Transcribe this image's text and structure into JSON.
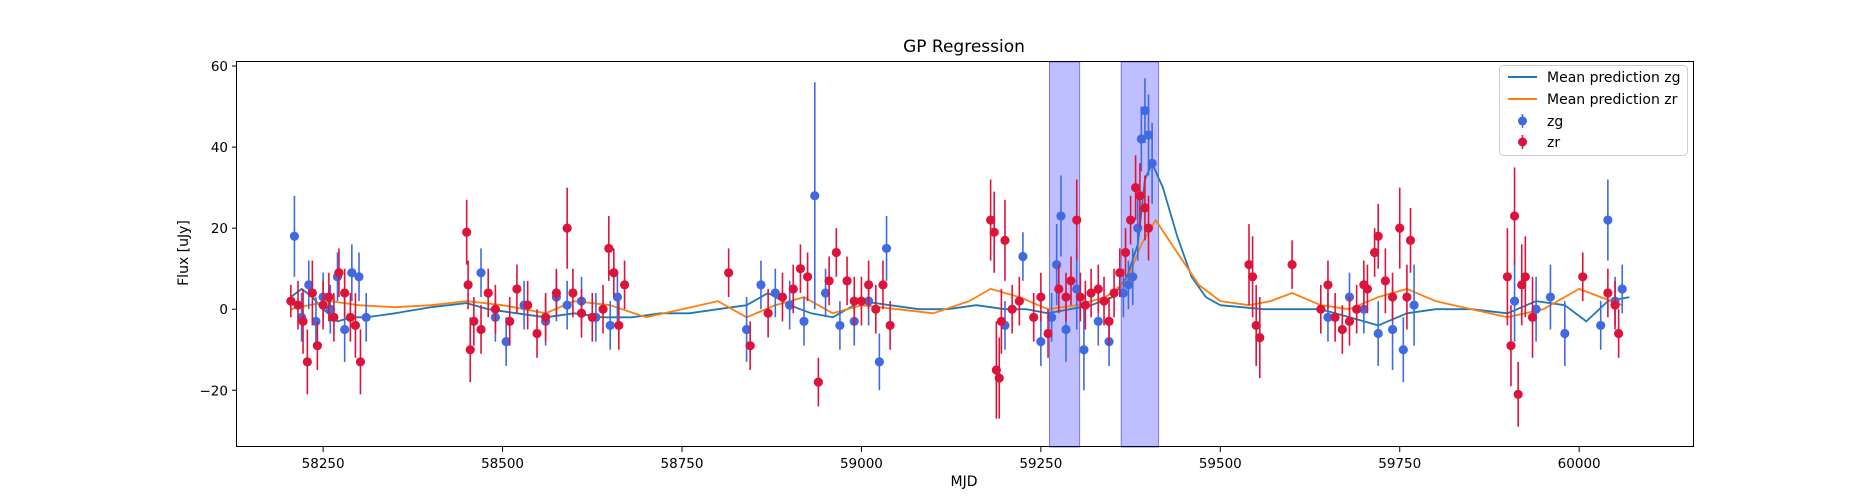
{
  "chart_data": {
    "type": "scatter",
    "title": "GP Regression",
    "xlabel": "MJD",
    "ylabel": "Flux [uJy]",
    "xlim": [
      58130,
      60160
    ],
    "ylim": [
      -34,
      61
    ],
    "xticks": [
      58250,
      58500,
      58750,
      59000,
      59250,
      59500,
      59750,
      60000
    ],
    "yticks": [
      -20,
      0,
      20,
      40,
      60
    ],
    "legend_position": "upper right",
    "grid": false,
    "shaded_regions": [
      {
        "x0": 59262,
        "x1": 59304,
        "color": "#aaaaff"
      },
      {
        "x0": 59362,
        "x1": 59414,
        "color": "#aaaaff"
      }
    ],
    "series": [
      {
        "name": "Mean prediction zg",
        "kind": "line",
        "color": "#1f77b4",
        "x": [
          58205,
          58220,
          58235,
          58250,
          58270,
          58290,
          58310,
          58350,
          58400,
          58450,
          58480,
          58520,
          58560,
          58600,
          58640,
          58680,
          58720,
          58760,
          58800,
          58840,
          58870,
          58900,
          58930,
          58960,
          59000,
          59040,
          59080,
          59120,
          59160,
          59200,
          59230,
          59260,
          59290,
          59320,
          59350,
          59370,
          59385,
          59395,
          59405,
          59420,
          59440,
          59460,
          59480,
          59500,
          59530,
          59560,
          59600,
          59640,
          59680,
          59720,
          59760,
          59800,
          59850,
          59900,
          59940,
          59980,
          60010,
          60040,
          60070
        ],
        "y": [
          3,
          5,
          3,
          0,
          -3,
          -2,
          -2,
          -1,
          0.5,
          1.5,
          0,
          -1,
          -2,
          -1,
          -2,
          -2,
          -1,
          -1,
          0,
          1,
          4,
          1,
          -1,
          -2,
          2,
          1,
          0,
          0,
          1,
          0,
          0,
          -1,
          0,
          1,
          3,
          8,
          16,
          32,
          36,
          30,
          18,
          8,
          3,
          1,
          0.5,
          0,
          0,
          0,
          -2,
          -4,
          -1,
          0,
          0,
          -1,
          2,
          1,
          -3,
          2,
          3
        ]
      },
      {
        "name": "Mean prediction zr",
        "kind": "line",
        "color": "#ff7f0e",
        "x": [
          58205,
          58230,
          58260,
          58300,
          58350,
          58400,
          58450,
          58500,
          58560,
          58600,
          58650,
          58700,
          58750,
          58800,
          58840,
          58880,
          58920,
          58960,
          59000,
          59050,
          59100,
          59150,
          59180,
          59220,
          59260,
          59300,
          59340,
          59370,
          59390,
          59410,
          59440,
          59470,
          59500,
          59540,
          59570,
          59600,
          59640,
          59680,
          59720,
          59760,
          59800,
          59850,
          59900,
          59950,
          60000,
          60030,
          60060
        ],
        "y": [
          0,
          1,
          2,
          1,
          0.5,
          1,
          2,
          1,
          -1,
          2,
          1,
          -2,
          0,
          2,
          -2,
          1,
          3,
          -1,
          1,
          0,
          -1,
          2,
          5,
          3,
          0,
          1,
          3,
          7,
          16,
          22,
          14,
          6,
          2,
          1,
          2,
          4,
          1,
          0,
          3,
          5,
          2,
          0,
          -2,
          0,
          5,
          3,
          1
        ]
      },
      {
        "name": "zg",
        "kind": "errorbar",
        "color": "#4169e1",
        "x": [
          58210,
          58220,
          58230,
          58240,
          58250,
          58260,
          58270,
          58280,
          58290,
          58300,
          58310,
          58470,
          58490,
          58505,
          58530,
          58560,
          58575,
          58590,
          58610,
          58630,
          58650,
          58660,
          58840,
          58860,
          58880,
          58900,
          58920,
          58935,
          58950,
          58970,
          58990,
          59010,
          59025,
          59035,
          59200,
          59225,
          59250,
          59265,
          59272,
          59278,
          59285,
          59300,
          59310,
          59330,
          59345,
          59365,
          59372,
          59378,
          59385,
          59390,
          59395,
          59400,
          59405,
          59650,
          59680,
          59700,
          59720,
          59740,
          59755,
          59770,
          59910,
          59940,
          59960,
          59980,
          60030,
          60040,
          60050,
          60060
        ],
        "y": [
          18,
          -2,
          6,
          -3,
          3,
          0,
          8,
          -5,
          9,
          8,
          -2,
          9,
          -2,
          -8,
          1,
          -3,
          3,
          1,
          2,
          -2,
          -4,
          3,
          -5,
          6,
          4,
          1,
          -3,
          28,
          4,
          -4,
          -3,
          2,
          -13,
          15,
          -4,
          13,
          -8,
          -2,
          11,
          23,
          -5,
          5,
          -10,
          -3,
          -8,
          4,
          6,
          8,
          20,
          42,
          49,
          43,
          36,
          -2,
          3,
          0,
          -6,
          -5,
          -10,
          1,
          2,
          0,
          3,
          -6,
          -4,
          22,
          2,
          5
        ],
        "err": [
          10,
          6,
          6,
          6,
          6,
          6,
          6,
          8,
          7,
          6,
          6,
          6,
          6,
          6,
          6,
          6,
          6,
          6,
          6,
          6,
          6,
          6,
          8,
          6,
          6,
          6,
          6,
          28,
          6,
          6,
          6,
          6,
          7,
          8,
          6,
          6,
          6,
          6,
          10,
          10,
          8,
          10,
          10,
          6,
          6,
          6,
          6,
          7,
          8,
          8,
          8,
          10,
          10,
          6,
          6,
          6,
          8,
          10,
          8,
          10,
          10,
          8,
          8,
          8,
          6,
          10,
          6,
          6
        ]
      },
      {
        "name": "zr",
        "kind": "errorbar",
        "color": "#dc143c",
        "x": [
          58205,
          58215,
          58222,
          58228,
          58235,
          58242,
          58250,
          58258,
          58265,
          58272,
          58280,
          58288,
          58295,
          58302,
          58450,
          58452,
          58455,
          58460,
          58470,
          58480,
          58490,
          58510,
          58520,
          58535,
          58548,
          58560,
          58575,
          58590,
          58598,
          58610,
          58625,
          58640,
          58648,
          58655,
          58662,
          58670,
          58815,
          58845,
          58870,
          58890,
          58905,
          58915,
          58925,
          58940,
          58955,
          58965,
          58980,
          58990,
          59000,
          59010,
          59020,
          59030,
          59040,
          59180,
          59185,
          59188,
          59192,
          59195,
          59200,
          59210,
          59220,
          59240,
          59250,
          59260,
          59275,
          59285,
          59292,
          59300,
          59305,
          59312,
          59320,
          59330,
          59338,
          59345,
          59352,
          59360,
          59368,
          59375,
          59382,
          59388,
          59395,
          59400,
          59540,
          59545,
          59550,
          59555,
          59600,
          59640,
          59650,
          59660,
          59670,
          59680,
          59690,
          59700,
          59705,
          59715,
          59720,
          59730,
          59740,
          59750,
          59760,
          59765,
          59900,
          59905,
          59910,
          59915,
          59920,
          59925,
          59935,
          60005,
          60040,
          60050,
          60055
        ],
        "y": [
          2,
          1,
          -3,
          -13,
          4,
          -9,
          1,
          3,
          -2,
          9,
          4,
          -2,
          -4,
          -13,
          19,
          6,
          -10,
          -3,
          -5,
          4,
          0,
          -3,
          5,
          1,
          -6,
          -2,
          4,
          20,
          4,
          -1,
          -2,
          0,
          15,
          9,
          -4,
          6,
          9,
          -9,
          -1,
          3,
          5,
          10,
          8,
          -18,
          7,
          14,
          7,
          2,
          2,
          6,
          0,
          6,
          -4,
          22,
          19,
          -15,
          -17,
          -3,
          17,
          0,
          2,
          -2,
          3,
          -6,
          5,
          3,
          7,
          22,
          3,
          1,
          4,
          5,
          2,
          -3,
          4,
          9,
          14,
          22,
          30,
          28,
          25,
          20,
          11,
          8,
          -4,
          -7,
          11,
          0,
          6,
          -2,
          -5,
          -3,
          0,
          6,
          5,
          14,
          18,
          7,
          3,
          20,
          3,
          17,
          8,
          -9,
          23,
          -21,
          6,
          8,
          -2,
          8,
          4,
          1,
          -6
        ],
        "err": [
          4,
          6,
          8,
          8,
          8,
          6,
          6,
          6,
          6,
          6,
          6,
          6,
          8,
          8,
          8,
          6,
          8,
          6,
          6,
          6,
          6,
          6,
          6,
          6,
          6,
          6,
          6,
          10,
          6,
          6,
          6,
          6,
          8,
          6,
          6,
          6,
          6,
          6,
          6,
          6,
          6,
          6,
          6,
          6,
          6,
          6,
          6,
          6,
          6,
          6,
          6,
          6,
          6,
          10,
          10,
          12,
          10,
          8,
          10,
          6,
          6,
          6,
          6,
          6,
          6,
          6,
          6,
          10,
          6,
          6,
          6,
          6,
          6,
          6,
          6,
          6,
          6,
          6,
          8,
          8,
          8,
          8,
          10,
          10,
          10,
          10,
          6,
          6,
          6,
          6,
          6,
          6,
          6,
          6,
          6,
          6,
          8,
          8,
          6,
          10,
          8,
          8,
          12,
          10,
          12,
          8,
          10,
          10,
          10,
          6,
          6,
          6,
          6
        ]
      }
    ]
  }
}
